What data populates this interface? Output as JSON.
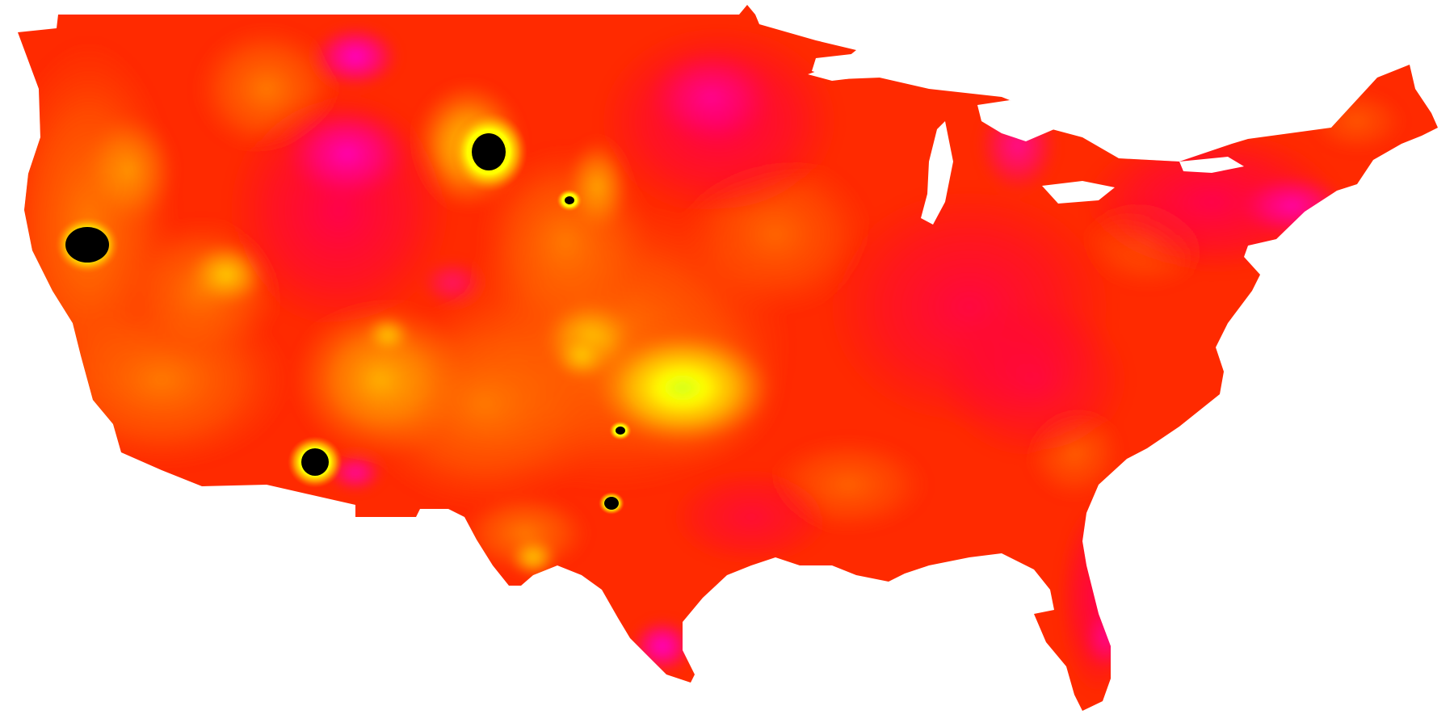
{
  "map": {
    "kind": "heatmap",
    "region": "contiguous-united-states",
    "background_color": "#ffffff",
    "palette": {
      "low": "#ff00cc",
      "mid_low": "#ff0040",
      "mid": "#ff2a00",
      "mid_high": "#ff7800",
      "high": "#ffd000",
      "peak": "#e0ff20",
      "no_data": "#000000"
    },
    "black_spots_count": 6
  }
}
